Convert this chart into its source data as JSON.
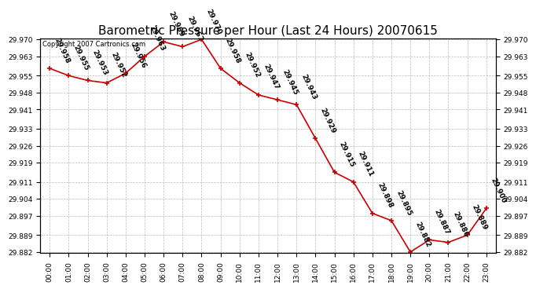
{
  "title": "Barometric Pressure per Hour (Last 24 Hours) 20070615",
  "copyright": "Copyright 2007 Cartronics.com",
  "hours": [
    0,
    1,
    2,
    3,
    4,
    5,
    6,
    7,
    8,
    9,
    10,
    11,
    12,
    13,
    14,
    15,
    16,
    17,
    18,
    19,
    20,
    21,
    22,
    23
  ],
  "hour_labels": [
    "00:00",
    "01:00",
    "02:00",
    "03:00",
    "04:00",
    "05:00",
    "06:00",
    "07:00",
    "08:00",
    "09:00",
    "10:00",
    "11:00",
    "12:00",
    "13:00",
    "14:00",
    "15:00",
    "16:00",
    "17:00",
    "18:00",
    "19:00",
    "20:00",
    "21:00",
    "22:00",
    "23:00"
  ],
  "values": [
    29.958,
    29.955,
    29.953,
    29.952,
    29.956,
    29.963,
    29.969,
    29.967,
    29.97,
    29.958,
    29.952,
    29.947,
    29.945,
    29.943,
    29.929,
    29.915,
    29.911,
    29.898,
    29.895,
    29.882,
    29.887,
    29.886,
    29.889,
    29.9
  ],
  "ylim_min": 29.882,
  "ylim_max": 29.97,
  "yticks": [
    29.882,
    29.889,
    29.897,
    29.904,
    29.911,
    29.919,
    29.926,
    29.933,
    29.941,
    29.948,
    29.955,
    29.963,
    29.97
  ],
  "line_color": "#cc0000",
  "marker_color": "#cc0000",
  "bg_color": "#ffffff",
  "grid_color": "#bbbbbb",
  "title_fontsize": 11,
  "tick_fontsize": 6.5,
  "annot_fontsize": 6.5,
  "annot_rotation": -65
}
